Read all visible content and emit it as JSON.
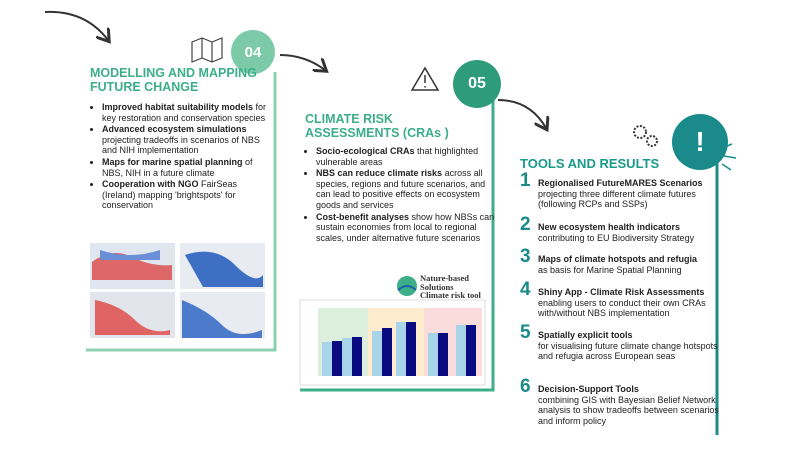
{
  "panels": [
    {
      "number": "04",
      "title": "MODELLING AND MAPPING FUTURE CHANGE",
      "bullets": [
        {
          "bold": "Improved habitat suitability models",
          "text": "for key restoration and conservation species"
        },
        {
          "bold": "Advanced ecosystem simulations",
          "text": "projecting tradeoffs in scenarios of NBS and NIH implementation"
        },
        {
          "bold": "Maps for marine spatial planning",
          "text": "of NBS, NIH in a future climate"
        },
        {
          "bold": "Cooperation with NGO",
          "text": "FairSeas (Ireland) mapping 'brightspots' for conservation"
        }
      ]
    },
    {
      "number": "05",
      "title": "CLIMATE RISK ASSESSMENTS (CRAs )",
      "bullets": [
        {
          "bold": "Socio-ecological CRAs",
          "text": "that highlighted vulnerable areas"
        },
        {
          "bold": "NBS can reduce climate risks",
          "text": "across all species, regions and future scenarios, and can lead to positive effects on ecosystem goods and services"
        },
        {
          "bold": "Cost-benefit analyses",
          "text": "show how NBSs can sustain economies from local to regional scales, under alternative future scenarios"
        }
      ],
      "logo": [
        "Nature-based",
        "Solutions",
        "Climate risk tool"
      ]
    },
    {
      "number": "!",
      "title": "TOOLS AND RESULTS",
      "items": [
        {
          "n": "1",
          "bold": "Regionalised FutureMARES Scenarios",
          "text": "projecting three different climate futures (following RCPs and SSPs)"
        },
        {
          "n": "2",
          "bold": "New ecosystem health indicators",
          "text": "contributing to EU Biodiversity Strategy"
        },
        {
          "n": "3",
          "bold": "Maps of climate hotspots and refugia",
          "text": "as basis for Marine Spatial Planning"
        },
        {
          "n": "4",
          "bold": "Shiny App - Climate Risk Assessments",
          "text": "enabling users to conduct their own CRAs with/without NBS implementation"
        },
        {
          "n": "5",
          "bold": "Spatially explicit tools",
          "text": "for visualising future climate change hotspots and refugia across European seas"
        },
        {
          "n": "6",
          "bold": "Decision-Support Tools",
          "text": "combining GIS with Bayesian Belief Network analysis to show tradeoffs between scenarios and inform policy"
        }
      ]
    }
  ]
}
